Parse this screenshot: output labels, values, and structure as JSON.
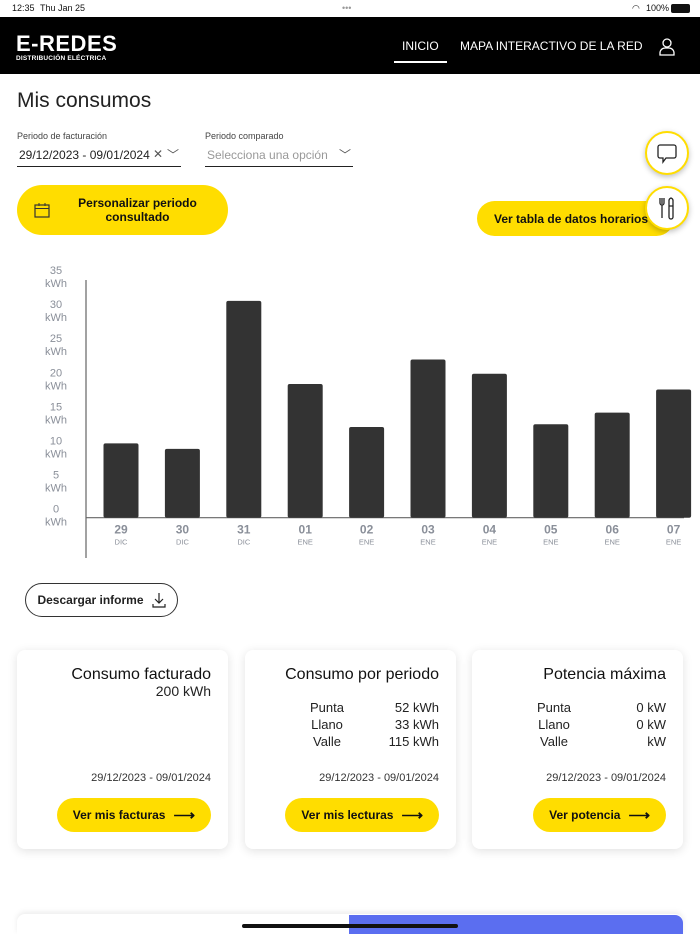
{
  "status": {
    "time": "12:35",
    "date": "Thu Jan 25",
    "battery": "100%"
  },
  "nav": {
    "logo": "E-REDES",
    "logo_sub": "DISTRIBUCIÓN ELÉCTRICA",
    "items": [
      {
        "label": "INICIO",
        "active": true
      },
      {
        "label": "MAPA INTERACTIVO DE LA RED"
      }
    ]
  },
  "page": {
    "title": "Mis consumos"
  },
  "filters": {
    "billing_label": "Periodo de facturación",
    "billing_value": "29/12/2023 - 09/01/2024",
    "compare_label": "Periodo comparado",
    "compare_placeholder": "Selecciona una opción"
  },
  "buttons": {
    "customize": "Personalizar periodo consultado",
    "hourly_table": "Ver tabla de datos horarios",
    "download": "Descargar informe"
  },
  "colors": {
    "accent": "#ffdd00",
    "bar": "#333333"
  },
  "chart_data": {
    "type": "bar",
    "categories": [
      "29",
      "30",
      "31",
      "01",
      "02",
      "03",
      "04",
      "05",
      "06",
      "07"
    ],
    "subcategories": [
      "DIC",
      "DIC",
      "DIC",
      "ENE",
      "ENE",
      "ENE",
      "ENE",
      "ENE",
      "ENE",
      "ENE"
    ],
    "values": [
      10.9,
      10.1,
      31.8,
      19.6,
      13.3,
      23.2,
      21.1,
      13.7,
      15.4,
      18.8
    ],
    "yticks": [
      "0",
      "5",
      "10",
      "15",
      "20",
      "25",
      "30",
      "35"
    ],
    "yunit": "kWh",
    "ylim": [
      0,
      35
    ],
    "grid": false
  },
  "cards": [
    {
      "title": "Consumo facturado",
      "value": "200 kWh",
      "date": "29/12/2023 - 09/01/2024",
      "button": "Ver mis facturas"
    },
    {
      "title": "Consumo por periodo",
      "rows": [
        {
          "k": "Punta",
          "v": "52 kWh"
        },
        {
          "k": "Llano",
          "v": "33 kWh"
        },
        {
          "k": "Valle",
          "v": "115 kWh"
        }
      ],
      "date": "29/12/2023 - 09/01/2024",
      "button": "Ver mis lecturas"
    },
    {
      "title": "Potencia máxima",
      "rows": [
        {
          "k": "Punta",
          "v": "0 kW"
        },
        {
          "k": "Llano",
          "v": "0 kW"
        },
        {
          "k": "Valle",
          "v": "kW"
        }
      ],
      "date": "29/12/2023 - 09/01/2024",
      "button": "Ver potencia"
    }
  ]
}
